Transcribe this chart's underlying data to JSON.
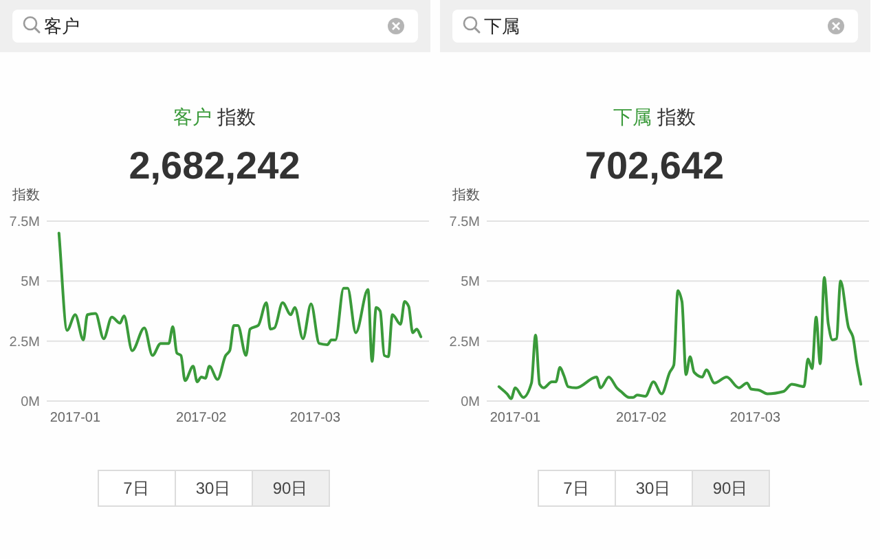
{
  "chart_data": [
    {
      "type": "line",
      "title": "客户 指数",
      "subtitle": "2,682,242",
      "ylabel": "指数",
      "x": [
        "2016-12-28",
        "2016-12-30",
        "2017-01-01",
        "2017-01-03",
        "2017-01-04",
        "2017-01-06",
        "2017-01-08",
        "2017-01-10",
        "2017-01-12",
        "2017-01-13",
        "2017-01-15",
        "2017-01-18",
        "2017-01-20",
        "2017-01-22",
        "2017-01-24",
        "2017-01-25",
        "2017-01-26",
        "2017-01-27",
        "2017-01-28",
        "2017-01-30",
        "2017-01-31",
        "2017-02-01",
        "2017-02-02",
        "2017-02-03",
        "2017-02-05",
        "2017-02-07",
        "2017-02-08",
        "2017-02-09",
        "2017-02-10",
        "2017-02-12",
        "2017-02-13",
        "2017-02-15",
        "2017-02-17",
        "2017-02-18",
        "2017-02-19",
        "2017-02-21",
        "2017-02-23",
        "2017-02-24",
        "2017-02-26",
        "2017-02-28",
        "2017-03-02",
        "2017-03-04",
        "2017-03-05",
        "2017-03-06",
        "2017-03-08",
        "2017-03-09",
        "2017-03-11",
        "2017-03-14",
        "2017-03-15",
        "2017-03-16",
        "2017-03-17",
        "2017-03-18",
        "2017-03-19",
        "2017-03-20",
        "2017-03-22",
        "2017-03-23",
        "2017-03-24",
        "2017-03-25",
        "2017-03-26",
        "2017-03-27"
      ],
      "series": [
        {
          "color": "#3a9a3a",
          "values": [
            7.0,
            2.95,
            3.6,
            2.55,
            3.6,
            3.65,
            2.6,
            3.5,
            3.25,
            3.55,
            2.1,
            3.05,
            1.9,
            2.4,
            2.4,
            3.1,
            2.0,
            1.9,
            0.85,
            1.45,
            0.8,
            1.0,
            0.95,
            1.45,
            0.9,
            1.9,
            2.1,
            3.15,
            3.15,
            1.9,
            3.0,
            3.15,
            4.1,
            3.0,
            3.05,
            4.1,
            3.6,
            3.9,
            2.6,
            4.05,
            2.4,
            2.35,
            2.55,
            2.55,
            4.7,
            4.7,
            2.85,
            4.65,
            1.65,
            3.9,
            3.75,
            1.9,
            1.85,
            3.6,
            3.2,
            4.15,
            3.95,
            2.85,
            3.0,
            2.68
          ]
        }
      ],
      "xlim": [
        "2016-12-25",
        "2017-03-29"
      ],
      "xticks": [
        "2017-01",
        "2017-02",
        "2017-03"
      ],
      "ylim": [
        0,
        7.5
      ],
      "yticks": [
        {
          "value": 0,
          "label": "0M"
        },
        {
          "value": 2.5,
          "label": "2.5M"
        },
        {
          "value": 5,
          "label": "5M"
        },
        {
          "value": 7.5,
          "label": "7.5M"
        }
      ],
      "grid": "y",
      "annotations": [
        "客户",
        "7日",
        "30日",
        "90日"
      ]
    },
    {
      "type": "line",
      "title": "下属 指数",
      "subtitle": "702,642",
      "ylabel": "指数",
      "x": [
        "2016-12-28",
        "2016-12-30",
        "2016-12-31",
        "2017-01-01",
        "2017-01-03",
        "2017-01-05",
        "2017-01-06",
        "2017-01-07",
        "2017-01-08",
        "2017-01-10",
        "2017-01-11",
        "2017-01-12",
        "2017-01-13",
        "2017-01-14",
        "2017-01-16",
        "2017-01-21",
        "2017-01-22",
        "2017-01-24",
        "2017-01-26",
        "2017-01-27",
        "2017-01-29",
        "2017-01-30",
        "2017-01-31",
        "2017-02-02",
        "2017-02-04",
        "2017-02-06",
        "2017-02-08",
        "2017-02-09",
        "2017-02-10",
        "2017-02-11",
        "2017-02-12",
        "2017-02-13",
        "2017-02-14",
        "2017-02-16",
        "2017-02-17",
        "2017-02-19",
        "2017-02-22",
        "2017-02-25",
        "2017-02-27",
        "2017-02-28",
        "2017-03-02",
        "2017-03-04",
        "2017-03-08",
        "2017-03-10",
        "2017-03-13",
        "2017-03-14",
        "2017-03-15",
        "2017-03-16",
        "2017-03-17",
        "2017-03-18",
        "2017-03-19",
        "2017-03-20",
        "2017-03-21",
        "2017-03-22",
        "2017-03-24",
        "2017-03-25",
        "2017-03-26",
        "2017-03-27"
      ],
      "series": [
        {
          "color": "#3a9a3a",
          "values": [
            0.6,
            0.3,
            0.1,
            0.55,
            0.15,
            0.75,
            2.75,
            0.7,
            0.55,
            0.8,
            0.8,
            1.4,
            1.05,
            0.6,
            0.55,
            1.0,
            0.55,
            1.0,
            0.55,
            0.4,
            0.15,
            0.15,
            0.25,
            0.2,
            0.8,
            0.3,
            1.2,
            1.5,
            4.6,
            4.15,
            1.1,
            1.85,
            1.2,
            1.0,
            1.3,
            0.75,
            1.0,
            0.55,
            0.75,
            0.5,
            0.45,
            0.3,
            0.4,
            0.7,
            0.6,
            1.75,
            1.35,
            3.5,
            1.55,
            5.15,
            3.2,
            2.55,
            2.6,
            5.0,
            3.05,
            2.7,
            1.6,
            0.7
          ]
        }
      ],
      "xlim": [
        "2016-12-25",
        "2017-03-29"
      ],
      "xticks": [
        "2017-01",
        "2017-02",
        "2017-03"
      ],
      "ylim": [
        0,
        7.5
      ],
      "yticks": [
        {
          "value": 0,
          "label": "0M"
        },
        {
          "value": 2.5,
          "label": "2.5M"
        },
        {
          "value": 5,
          "label": "5M"
        },
        {
          "value": 7.5,
          "label": "7.5M"
        }
      ],
      "grid": "y",
      "annotations": [
        "下属",
        "7日",
        "30日",
        "90日"
      ]
    }
  ]
}
